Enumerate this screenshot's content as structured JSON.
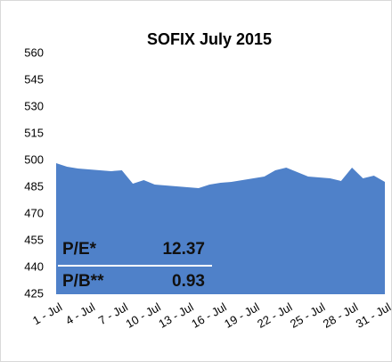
{
  "chart_data": {
    "type": "area",
    "title": "SOFIX July 2015",
    "categories": [
      "1 - Jul",
      null,
      null,
      "4 - Jul",
      null,
      null,
      "7 - Jul",
      null,
      null,
      "10 - Jul",
      null,
      null,
      "13 - Jul",
      null,
      null,
      "16 - Jul",
      null,
      null,
      "19 - Jul",
      null,
      null,
      "22 - Jul",
      null,
      null,
      "25 - Jul",
      null,
      null,
      "28 - Jul",
      null,
      null,
      "31 - Jul"
    ],
    "values": [
      498.5,
      496.5,
      495.5,
      495,
      494.5,
      494,
      494.5,
      487,
      489,
      486.5,
      486,
      485.5,
      485,
      484.5,
      486.5,
      487.5,
      488,
      489,
      490,
      491,
      494.5,
      496,
      493.5,
      491,
      490.5,
      490,
      488.5,
      496,
      490,
      491.5,
      488
    ],
    "color": "#4f81c9",
    "ylim": [
      425,
      560
    ],
    "yticks": [
      425,
      440,
      455,
      470,
      485,
      500,
      515,
      530,
      545,
      560
    ],
    "grid": false,
    "annotations": [
      {
        "label": "P/E*",
        "value": 12.37
      },
      {
        "label": "P/B**",
        "value": 0.93
      }
    ]
  }
}
